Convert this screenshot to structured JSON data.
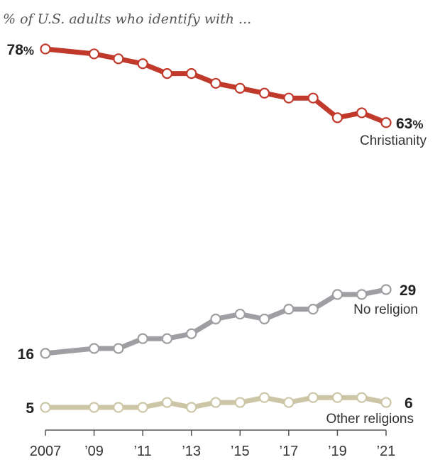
{
  "chart_data": {
    "type": "line",
    "subtitle": "% of U.S. adults who identify with ...",
    "x": [
      2007,
      2009,
      2010,
      2011,
      2012,
      2013,
      2014,
      2015,
      2016,
      2017,
      2018,
      2019,
      2020,
      2021
    ],
    "x_tick_values": [
      2007,
      2009,
      2011,
      2013,
      2015,
      2017,
      2019,
      2021
    ],
    "x_tick_labels": [
      "2007",
      "’09",
      "’11",
      "’13",
      "’15",
      "’17",
      "’19",
      "’21"
    ],
    "ylim": [
      0,
      80
    ],
    "grid": false,
    "series": [
      {
        "name": "Christianity",
        "color": "#c0392b",
        "values": [
          78,
          77,
          76,
          75,
          73,
          73,
          71,
          70,
          69,
          68,
          68,
          64,
          65,
          63
        ],
        "start_label": "78%",
        "end_label": "63%"
      },
      {
        "name": "No religion",
        "color": "#9e9ea3",
        "values": [
          16,
          17,
          17,
          19,
          19,
          20,
          23,
          24,
          23,
          25,
          25,
          28,
          28,
          29
        ],
        "start_label": "16",
        "end_label": "29"
      },
      {
        "name": "Other religions",
        "color": "#cdc6a6",
        "values": [
          5,
          5,
          5,
          5,
          6,
          5,
          6,
          6,
          7,
          6,
          7,
          7,
          7,
          6
        ],
        "start_label": "5",
        "end_label": "6"
      }
    ]
  }
}
